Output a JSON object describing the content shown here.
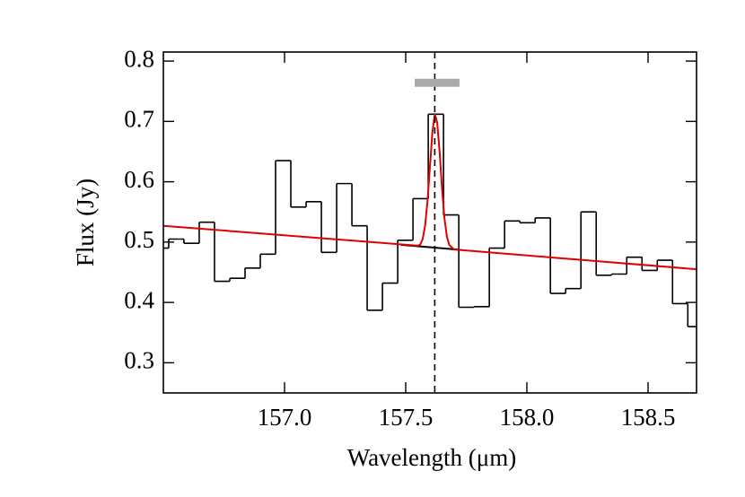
{
  "chart_data": {
    "type": "histogram",
    "xlabel": "Wavelength (μm)",
    "ylabel": "Flux (Jy)",
    "xlim": [
      156.5,
      158.7
    ],
    "ylim": [
      0.25,
      0.815
    ],
    "xticks": [
      {
        "value": 157,
        "label": "157.0"
      },
      157.5,
      {
        "value": 158,
        "label": "158.0"
      },
      158.5
    ],
    "yticks": [
      0.3,
      0.4,
      0.5,
      0.6,
      0.7,
      0.8
    ],
    "color": "#000000",
    "bins": [
      156.459,
      156.522,
      156.585,
      156.648,
      156.711,
      156.774,
      156.837,
      156.9,
      156.963,
      157.026,
      157.089,
      157.152,
      157.215,
      157.278,
      157.341,
      157.404,
      157.467,
      157.53,
      157.593,
      157.656,
      157.719,
      157.782,
      157.845,
      157.908,
      157.971,
      158.034,
      158.097,
      158.16,
      158.223,
      158.286,
      158.349,
      158.412,
      158.475,
      158.538,
      158.601,
      158.664,
      158.727
    ],
    "values": [
      0.49,
      0.505,
      0.498,
      0.533,
      0.435,
      0.44,
      0.457,
      0.48,
      0.635,
      0.558,
      0.567,
      0.483,
      0.597,
      0.527,
      0.387,
      0.432,
      0.503,
      0.572,
      0.712,
      0.545,
      0.392,
      0.393,
      0.49,
      0.535,
      0.532,
      0.54,
      0.415,
      0.423,
      0.55,
      0.445,
      0.447,
      0.475,
      0.453,
      0.47,
      0.398,
      0.36
    ],
    "series": [
      {
        "color": "#000000",
        "x": [
          157.48,
          157.73
        ],
        "values": [
          0.4956,
          0.487
        ]
      },
      {
        "color": "#e00000",
        "x": [
          156.5,
          157.55,
          157.56,
          157.57,
          157.58,
          157.59,
          157.6,
          157.61,
          157.62,
          157.63,
          157.64,
          157.65,
          157.66,
          157.67,
          157.68,
          157.7,
          158.7
        ],
        "values": [
          0.527,
          0.494,
          0.496,
          0.505,
          0.527,
          0.568,
          0.625,
          0.682,
          0.712,
          0.698,
          0.649,
          0.588,
          0.539,
          0.509,
          0.495,
          0.4877,
          0.455
        ]
      }
    ],
    "vline": {
      "x": 157.62,
      "color": "#000000"
    },
    "band": {
      "x": [
        157.537,
        157.722
      ],
      "y": 0.764,
      "color": "#aaaaaa"
    }
  }
}
